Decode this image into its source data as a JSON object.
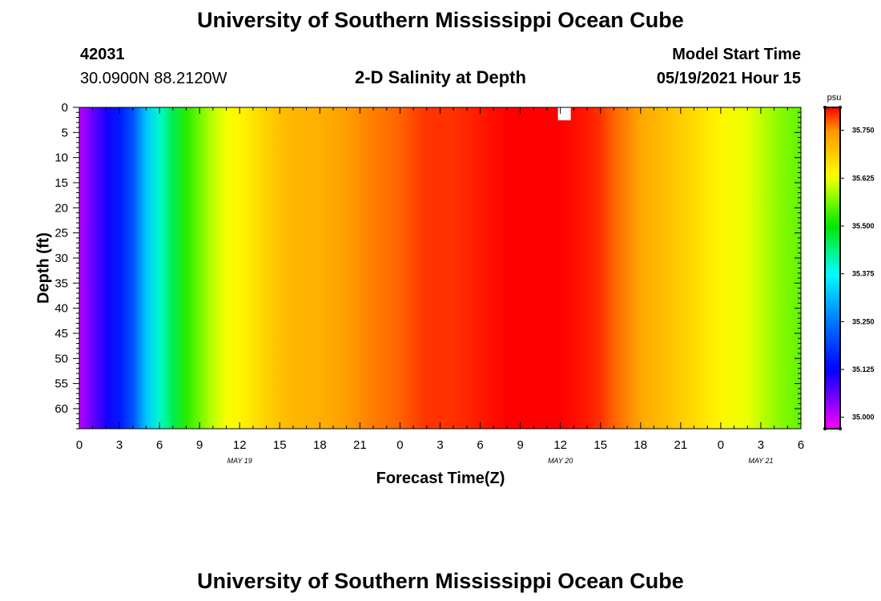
{
  "header": {
    "title": "University of Southern Mississippi Ocean Cube",
    "station_id": "42031",
    "station_coords": "30.0900N  88.2120W",
    "subtitle": "2-D Salinity at Depth",
    "model_start_label": "Model Start Time",
    "model_start_value": "05/19/2021 Hour 15"
  },
  "footer": {
    "title": "University of Southern Mississippi Ocean Cube"
  },
  "chart_data": {
    "type": "heatmap",
    "title": "2-D Salinity at Depth",
    "xlabel": "Forecast Time(Z)",
    "ylabel": "Depth (ft)",
    "x_tick_labels": [
      "0",
      "3",
      "6",
      "9",
      "12",
      "15",
      "18",
      "21",
      "0",
      "3",
      "6",
      "9",
      "12",
      "15",
      "18",
      "21",
      "0",
      "3",
      "6"
    ],
    "x_hours": [
      0,
      3,
      6,
      9,
      12,
      15,
      18,
      21,
      24,
      27,
      30,
      33,
      36,
      39,
      42,
      45,
      48,
      51,
      54
    ],
    "date_labels": [
      {
        "label": "MAY 19",
        "hour": 12
      },
      {
        "label": "MAY 20",
        "hour": 36
      },
      {
        "label": "MAY 21",
        "hour": 51
      }
    ],
    "y_tick_labels": [
      "0",
      "5",
      "10",
      "15",
      "20",
      "25",
      "30",
      "35",
      "40",
      "45",
      "50",
      "55",
      "60"
    ],
    "y_values": [
      0,
      5,
      10,
      15,
      20,
      25,
      30,
      35,
      40,
      45,
      50,
      55,
      60
    ],
    "y_range": [
      0,
      64
    ],
    "x_range": [
      0,
      54
    ],
    "colorbar": {
      "unit": "psu",
      "tick_labels": [
        "35.000",
        "35.125",
        "35.250",
        "35.375",
        "35.500",
        "35.625",
        "35.750"
      ],
      "tick_values": [
        35.0,
        35.125,
        35.25,
        35.375,
        35.5,
        35.625,
        35.75
      ],
      "range": [
        34.97,
        35.81
      ]
    },
    "salinity_by_hour": {
      "hours": [
        0,
        1,
        2,
        3,
        4,
        5,
        6,
        7,
        8,
        9,
        10,
        11,
        12,
        13,
        14,
        15,
        16,
        18,
        20,
        22,
        24,
        26,
        28,
        30,
        32,
        34,
        36,
        38,
        39,
        40,
        42,
        44,
        46,
        48,
        50,
        52,
        54
      ],
      "values": [
        35.01,
        35.06,
        35.11,
        35.15,
        35.21,
        35.32,
        35.4,
        35.46,
        35.52,
        35.56,
        35.6,
        35.625,
        35.64,
        35.66,
        35.68,
        35.7,
        35.71,
        35.72,
        35.74,
        35.76,
        35.77,
        35.79,
        35.79,
        35.8,
        35.81,
        35.81,
        35.81,
        35.8,
        35.79,
        35.77,
        35.73,
        35.7,
        35.67,
        35.64,
        35.62,
        35.58,
        35.55
      ]
    },
    "marker": {
      "hour": 36.3,
      "depth": 1.3,
      "color": "#ffffff"
    },
    "grid": false
  }
}
